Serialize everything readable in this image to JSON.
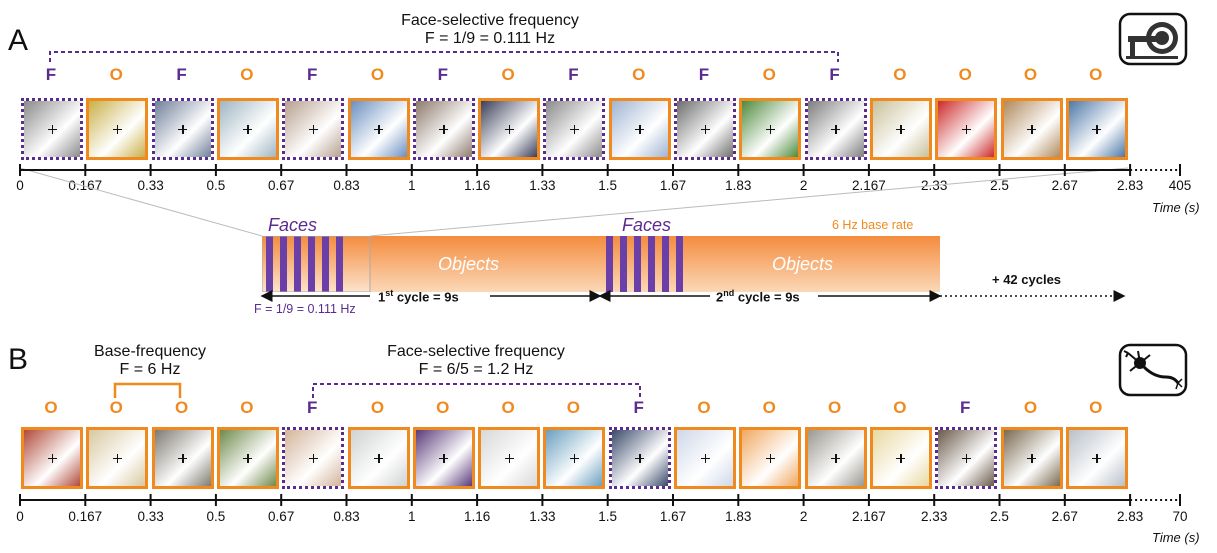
{
  "panel_a": {
    "letter": "A",
    "title_line1": "Face-selective frequency",
    "title_line2": "F = 1/9 = 0.111 Hz",
    "labels": [
      "F",
      "O",
      "F",
      "O",
      "F",
      "O",
      "F",
      "O",
      "F",
      "O",
      "F",
      "O",
      "F",
      "O",
      "O",
      "O",
      "O"
    ],
    "ticks": [
      "0",
      "0.167",
      "0.33",
      "0.5",
      "0.67",
      "0.83",
      "1",
      "1.16",
      "1.33",
      "1.5",
      "1.67",
      "1.83",
      "2",
      "2.167",
      "2.33",
      "2.5",
      "2.67",
      "2.83"
    ],
    "end_tick": "405",
    "time_label": "Time (s)",
    "icon": "mri-scanner-icon"
  },
  "inset": {
    "faces_1": "Faces",
    "objects_1": "Objects",
    "faces_2": "Faces",
    "objects_2": "Objects",
    "base_rate": "6 Hz base rate",
    "freq_label": "F = 1/9 = 0.111 Hz",
    "cycle1_pre": "1",
    "cycle1_sup": "st",
    "cycle1_post": " cycle = 9s",
    "cycle2_pre": "2",
    "cycle2_sup": "nd",
    "cycle2_post": " cycle = 9s",
    "more_cycles": "+ 42 cycles"
  },
  "panel_b": {
    "letter": "B",
    "base_title_line1": "Base-frequency",
    "base_title_line2": "F = 6 Hz",
    "title_line1": "Face-selective frequency",
    "title_line2": "F = 6/5 = 1.2 Hz",
    "labels": [
      "O",
      "O",
      "O",
      "O",
      "F",
      "O",
      "O",
      "O",
      "O",
      "F",
      "O",
      "O",
      "O",
      "O",
      "F",
      "O",
      "O"
    ],
    "ticks": [
      "0",
      "0.167",
      "0.33",
      "0.5",
      "0.67",
      "0.83",
      "1",
      "1.16",
      "1.33",
      "1.5",
      "1.67",
      "1.83",
      "2",
      "2.167",
      "2.33",
      "2.5",
      "2.67",
      "2.83"
    ],
    "end_tick": "70",
    "time_label": "Time (s)",
    "icon": "neuron-icon"
  },
  "colors": {
    "face": "#5B2C90",
    "object": "#F08A1E",
    "axis": "#111111"
  }
}
